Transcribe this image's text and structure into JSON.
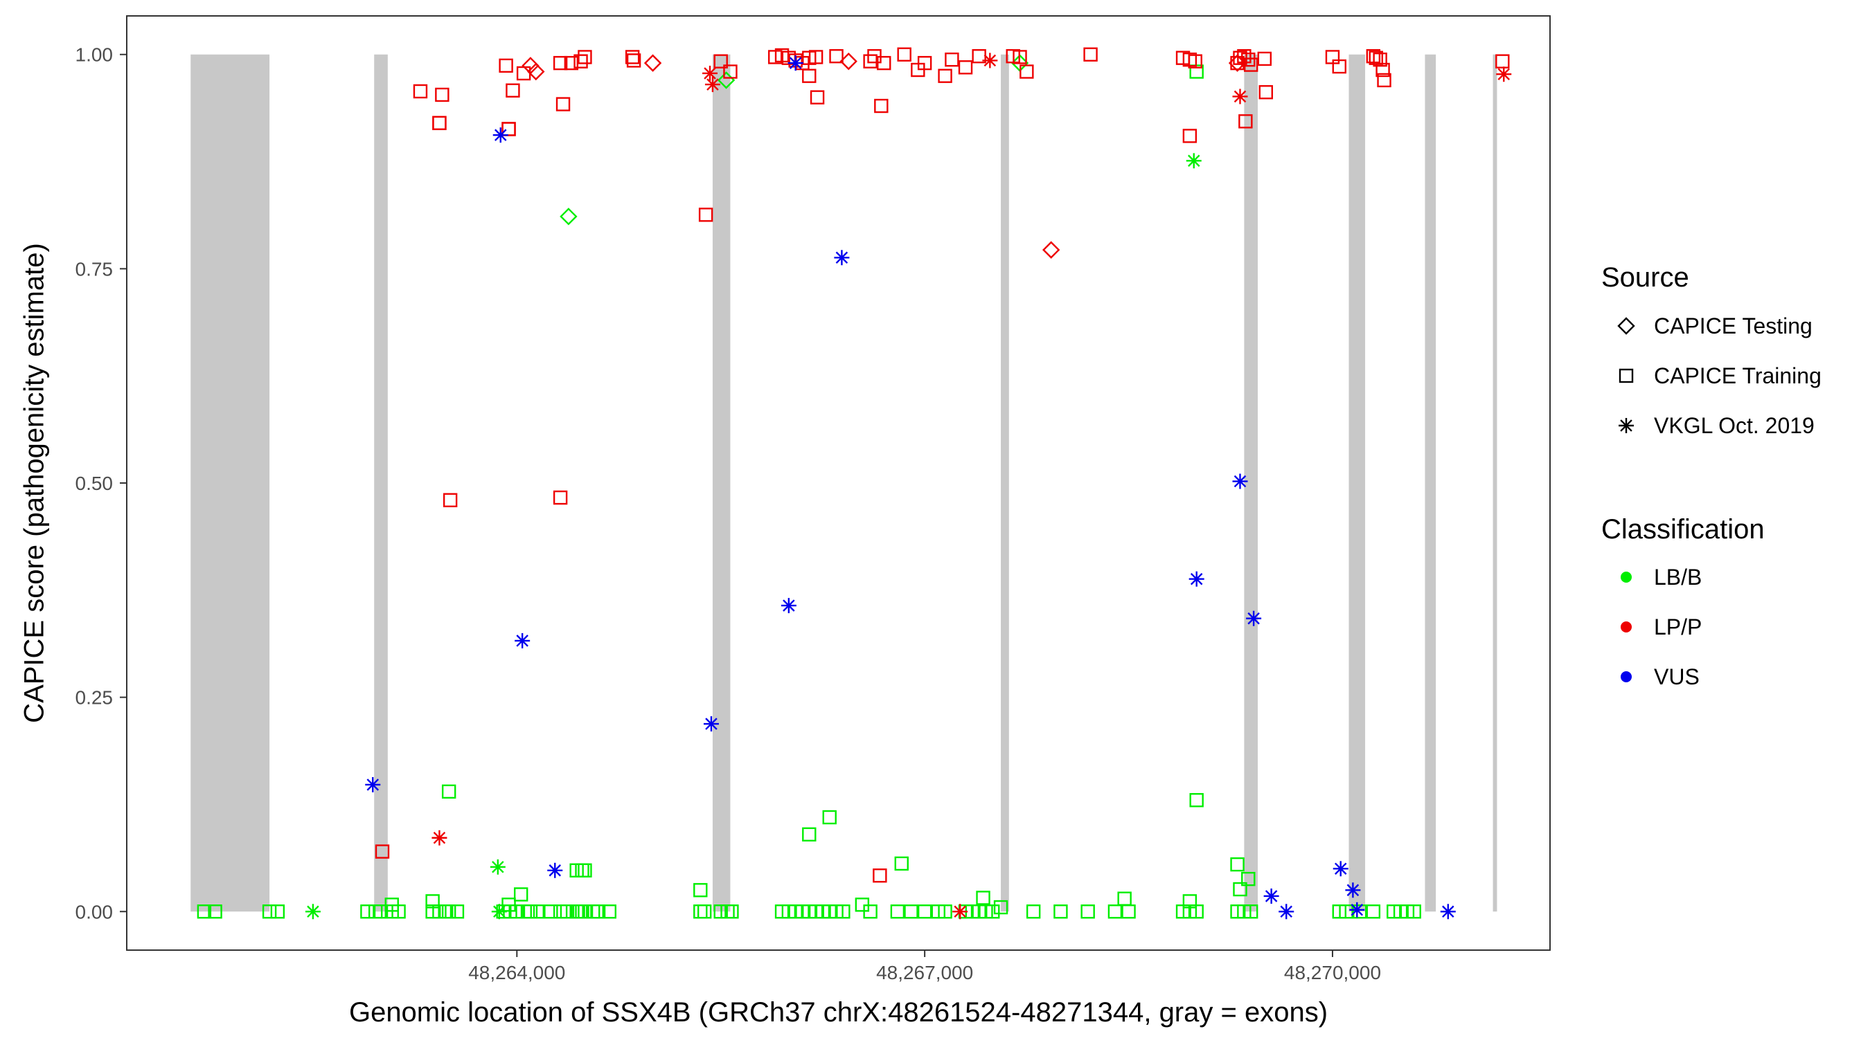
{
  "chart_data": {
    "type": "scatter",
    "xlabel": "Genomic location of SSX4B (GRCh37 chrX:48261524-48271344, gray = exons)",
    "ylabel": "CAPICE score (pathogenicity estimate)",
    "xlim": [
      48261130,
      48271600
    ],
    "ylim": [
      -0.045,
      1.045
    ],
    "xticks": [
      48264000,
      48267000,
      48270000
    ],
    "xtick_labels": [
      "48,264,000",
      "48,267,000",
      "48,270,000"
    ],
    "yticks": [
      0,
      0.25,
      0.5,
      0.75,
      1.0
    ],
    "ytick_labels": [
      "0.00",
      "0.25",
      "0.50",
      "0.75",
      "1.00"
    ],
    "grid": false,
    "exons": [
      [
        48261600,
        48262180
      ],
      [
        48262950,
        48263050
      ],
      [
        48265440,
        48265570
      ],
      [
        48267560,
        48267620
      ],
      [
        48269350,
        48269450
      ],
      [
        48270120,
        48270240
      ],
      [
        48270680,
        48270760
      ],
      [
        48271180,
        48271210
      ]
    ],
    "legend": {
      "placement": "right",
      "source": {
        "title": "Source",
        "entries": [
          {
            "label": "CAPICE Testing",
            "shape": "diamond"
          },
          {
            "label": "CAPICE Training",
            "shape": "square"
          },
          {
            "label": "VKGL Oct. 2019",
            "shape": "asterisk"
          }
        ]
      },
      "classification": {
        "title": "Classification",
        "entries": [
          {
            "label": "LB/B",
            "color": "#00ee00"
          },
          {
            "label": "LP/P",
            "color": "#ee0000"
          },
          {
            "label": "VUS",
            "color": "#0000ee"
          }
        ]
      }
    },
    "series": [
      {
        "source": "CAPICE Training",
        "classification": "LB/B",
        "shape": "square",
        "color": "#00ee00",
        "x": [
          48261700,
          48261780,
          48262180,
          48262240,
          48262900,
          48262960,
          48263000,
          48263080,
          48263130,
          48263380,
          48263430,
          48263480,
          48263500,
          48263560,
          48263900,
          48263950,
          48264000,
          48264080,
          48264100,
          48264150,
          48264250,
          48264320,
          48264370,
          48264440,
          48264450,
          48264480,
          48264500,
          48264560,
          48264600,
          48264680,
          48265350,
          48265380,
          48265500,
          48265550,
          48265580,
          48265950,
          48266000,
          48266050,
          48266100,
          48266150,
          48266200,
          48266250,
          48266300,
          48266350,
          48266400,
          48266600,
          48266800,
          48266900,
          48267000,
          48267100,
          48267150,
          48267300,
          48267350,
          48267400,
          48267450,
          48267500,
          48267800,
          48268000,
          48268200,
          48268400,
          48268500,
          48268900,
          48268950,
          48269000,
          48269300,
          48269350,
          48269400,
          48270050,
          48270100,
          48270200,
          48270300,
          48270450,
          48270500,
          48270550,
          48270600,
          48269000,
          48269000,
          48269300,
          48269320,
          48269380,
          48266150,
          48266300,
          48266540,
          48264500,
          48265350,
          48266830,
          48264440,
          48264480,
          48263500,
          48264030,
          48263940,
          48263380,
          48268470,
          48268950,
          48267430,
          48267560,
          48263080
        ],
        "y": [
          0,
          0,
          0,
          0,
          0,
          0,
          0,
          0,
          0,
          0,
          0,
          0,
          0,
          0,
          0,
          0,
          0,
          0,
          0,
          0,
          0,
          0,
          0,
          0,
          0,
          0,
          0,
          0,
          0,
          0,
          0,
          0,
          0,
          0,
          0,
          0,
          0,
          0,
          0,
          0,
          0,
          0,
          0,
          0,
          0,
          0,
          0,
          0,
          0,
          0,
          0,
          0,
          0,
          0,
          0,
          0,
          0,
          0,
          0,
          0,
          0,
          0,
          0,
          0,
          0,
          0,
          0,
          0,
          0,
          0,
          0,
          0,
          0,
          0,
          0,
          0.13,
          0.98,
          0.055,
          0.026,
          0.038,
          0.09,
          0.11,
          0.008,
          0.048,
          0.025,
          0.056,
          0.048,
          0.048,
          0.14,
          0.02,
          0.008,
          0.012,
          0.015,
          0.012,
          0.016,
          0.005,
          0.008
        ]
      },
      {
        "source": "VKGL Oct. 2019",
        "classification": "LB/B",
        "shape": "asterisk",
        "color": "#00ee00",
        "x": [
          48262500,
          48263860,
          48263870,
          48268980
        ],
        "y": [
          0,
          0.052,
          0,
          0.876
        ]
      },
      {
        "source": "CAPICE Testing",
        "classification": "LB/B",
        "shape": "diamond",
        "color": "#00ee00",
        "x": [
          48264380,
          48265540,
          48267700
        ],
        "y": [
          0.811,
          0.97,
          0.99
        ]
      },
      {
        "source": "CAPICE Training",
        "classification": "LP/P",
        "shape": "square",
        "color": "#ee0000",
        "x": [
          48263290,
          48263430,
          48263450,
          48263920,
          48263940,
          48263970,
          48264050,
          48264340,
          48264400,
          48264470,
          48264500,
          48264850,
          48264860,
          48265500,
          48265570,
          48265900,
          48265950,
          48266000,
          48266050,
          48266100,
          48266150,
          48266200,
          48266350,
          48266630,
          48266680,
          48266700,
          48266850,
          48266950,
          48267000,
          48267150,
          48267200,
          48267300,
          48267400,
          48267650,
          48267700,
          48267750,
          48268220,
          48268900,
          48268950,
          48268990,
          48269300,
          48269320,
          48269350,
          48269380,
          48269400,
          48269500,
          48270000,
          48270050,
          48270300,
          48270320,
          48270350,
          48270370,
          48270380,
          48271250,
          48263430,
          48263510,
          48264320,
          48265390,
          48266150,
          48266210,
          48266670,
          48268950,
          48269360,
          48269510,
          48263940,
          48264320,
          48266600,
          48263010
        ],
        "y": [
          0.957,
          0.92,
          0.953,
          0.987,
          0.913,
          0.958,
          0.978,
          0.942,
          0.99,
          0.992,
          0.997,
          0.997,
          0.993,
          0.992,
          0.98,
          0.997,
          0.999,
          0.996,
          0.993,
          0.99,
          0.996,
          0.997,
          0.998,
          0.998,
          0.94,
          0.99,
          1.0,
          0.982,
          0.99,
          0.975,
          0.994,
          0.985,
          0.998,
          0.998,
          0.997,
          0.98,
          1.0,
          0.996,
          0.994,
          0.992,
          0.99,
          0.996,
          0.998,
          0.994,
          0.988,
          0.995,
          0.997,
          0.986,
          0.998,
          0.996,
          0.994,
          0.982,
          0.97,
          0.992,
          0.92,
          0.48,
          0.483,
          0.813,
          0.975,
          0.95,
          0.042,
          0.905,
          0.922,
          0.956,
          0.913,
          0.99,
          0.992,
          0.07
        ]
      },
      {
        "source": "VKGL Oct. 2019",
        "classification": "LP/P",
        "shape": "asterisk",
        "color": "#ee0000",
        "x": [
          48263430,
          48265420,
          48265440,
          48267260,
          48267480,
          48269320,
          48271260
        ],
        "y": [
          0.086,
          0.978,
          0.965,
          0,
          0.993,
          0.951,
          0.977
        ]
      },
      {
        "source": "CAPICE Testing",
        "classification": "LP/P",
        "shape": "diamond",
        "color": "#ee0000",
        "x": [
          48264100,
          48264140,
          48265000,
          48266440,
          48267930,
          48269300
        ],
        "y": [
          0.987,
          0.98,
          0.99,
          0.992,
          0.772,
          0.99
        ]
      },
      {
        "source": "VKGL Oct. 2019",
        "classification": "VUS",
        "shape": "asterisk",
        "color": "#0000ee",
        "x": [
          48262940,
          48263880,
          48264040,
          48264280,
          48265430,
          48266000,
          48266050,
          48266390,
          48269000,
          48269320,
          48269420,
          48269550,
          48269660,
          48270060,
          48270150,
          48270180,
          48270850
        ],
        "y": [
          0.148,
          0.906,
          0.316,
          0.048,
          0.219,
          0.357,
          0.99,
          0.763,
          0.388,
          0.502,
          0.342,
          0.018,
          0,
          0.05,
          0.025,
          0.002,
          0
        ]
      }
    ]
  }
}
